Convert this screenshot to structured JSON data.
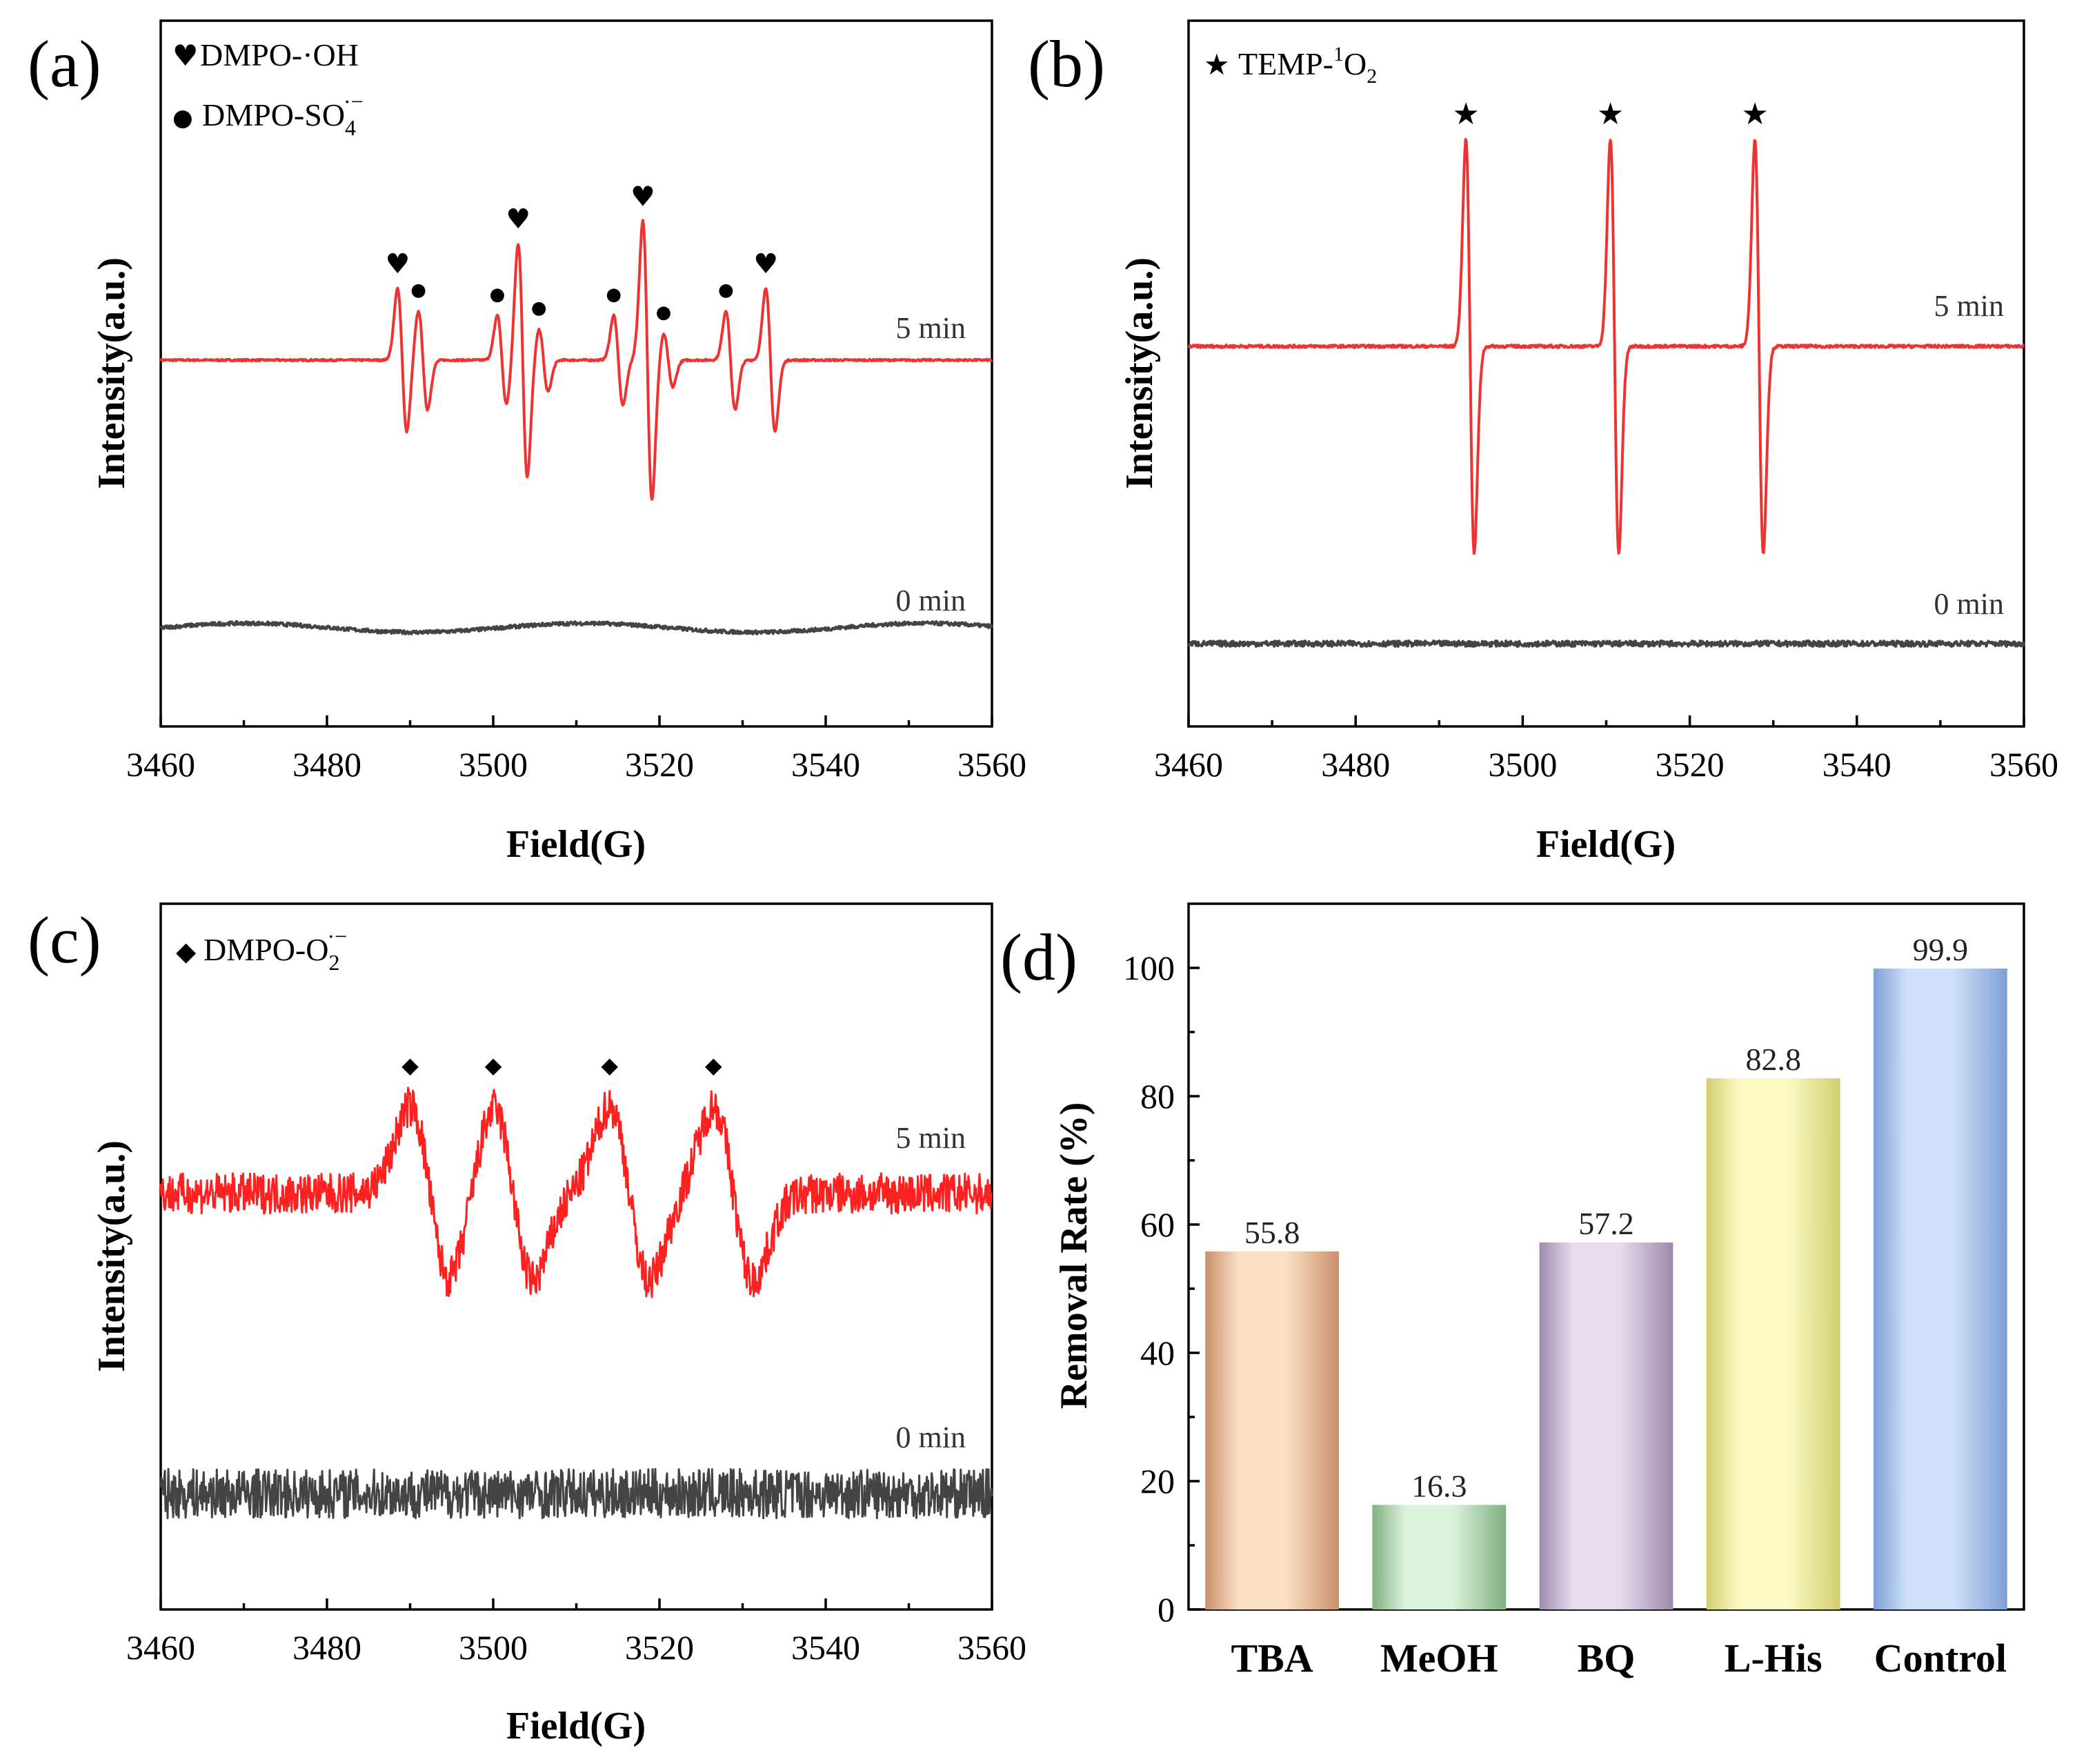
{
  "chart_data": [
    {
      "id": "a",
      "type": "line",
      "panel_label": "(a)",
      "xlabel": "Field(G)",
      "ylabel": "Intensity(a.u.)",
      "xlim": [
        3460,
        3560
      ],
      "xticks": [
        3460,
        3480,
        3500,
        3520,
        3540,
        3560
      ],
      "legend": [
        {
          "marker": "♥",
          "text": "DMPO-·OH"
        },
        {
          "marker": "●",
          "text": "DMPO-SO",
          "sub": "4",
          "sup": "·−"
        }
      ],
      "series": [
        {
          "name": "5 min",
          "color": "#ee3333",
          "peaks": [
            {
              "x": 3488.5,
              "amp": 0.8,
              "type": "OH"
            },
            {
              "x": 3491.0,
              "amp": 0.55,
              "type": "SO4"
            },
            {
              "x": 3500.5,
              "amp": 0.5,
              "type": "SO4"
            },
            {
              "x": 3503.0,
              "amp": 1.3,
              "type": "OH"
            },
            {
              "x": 3505.5,
              "amp": 0.35,
              "type": "SO4"
            },
            {
              "x": 3514.5,
              "amp": 0.5,
              "type": "SO4"
            },
            {
              "x": 3518.0,
              "amp": 1.55,
              "type": "OH"
            },
            {
              "x": 3520.5,
              "amp": 0.3,
              "type": "SO4"
            },
            {
              "x": 3528.0,
              "amp": 0.55,
              "type": "SO4"
            },
            {
              "x": 3532.8,
              "amp": 0.8,
              "type": "OH"
            }
          ]
        },
        {
          "name": "0 min",
          "color": "#444444",
          "peaks": []
        }
      ]
    },
    {
      "id": "b",
      "type": "line",
      "panel_label": "(b)",
      "xlabel": "Field(G)",
      "ylabel": "Intensity(a.u.)",
      "xlim": [
        3460,
        3560
      ],
      "xticks": [
        3460,
        3480,
        3500,
        3520,
        3540,
        3560
      ],
      "legend": [
        {
          "marker": "★",
          "text": "TEMP-",
          "sup1": "1",
          "text2": "O",
          "sub": "2"
        }
      ],
      "series": [
        {
          "name": "5 min",
          "color": "#ee3333",
          "peaks": [
            {
              "x": 3493.2,
              "amp": 1.5,
              "type": "1O2"
            },
            {
              "x": 3510.5,
              "amp": 1.5,
              "type": "1O2"
            },
            {
              "x": 3527.8,
              "amp": 1.5,
              "type": "1O2"
            }
          ]
        },
        {
          "name": "0 min",
          "color": "#444444",
          "peaks": []
        }
      ]
    },
    {
      "id": "c",
      "type": "line",
      "panel_label": "(c)",
      "xlabel": "Field(G)",
      "ylabel": "Intensity(a.u.)",
      "xlim": [
        3460,
        3560
      ],
      "xticks": [
        3460,
        3480,
        3500,
        3520,
        3540,
        3560
      ],
      "legend": [
        {
          "marker": "◆",
          "text": "DMPO-O",
          "sub": "2",
          "sup": "·−"
        }
      ],
      "series": [
        {
          "name": "5 min",
          "color": "#ff2020",
          "peaks": [
            {
              "x": 3490.0,
              "amp": 1.0,
              "type": "O2"
            },
            {
              "x": 3500.0,
              "amp": 1.0,
              "type": "O2"
            },
            {
              "x": 3514.0,
              "amp": 1.0,
              "type": "O2"
            },
            {
              "x": 3526.5,
              "amp": 1.0,
              "type": "O2"
            }
          ]
        },
        {
          "name": "0 min",
          "color": "#444444",
          "peaks": []
        }
      ]
    },
    {
      "id": "d",
      "type": "bar",
      "panel_label": "(d)",
      "xlabel": "",
      "ylabel": "Removal Rate (%)",
      "ylim": [
        0,
        110
      ],
      "yticks": [
        0,
        20,
        40,
        60,
        80,
        100
      ],
      "categories": [
        "TBA",
        "MeOH",
        "BQ",
        "L-His",
        "Control"
      ],
      "values": [
        55.8,
        16.3,
        57.2,
        82.8,
        99.9
      ],
      "value_labels": [
        "55.8",
        "16.3",
        "57.2",
        "82.8",
        "99.9"
      ],
      "colors": [
        [
          "#fbe0c6",
          "#c9906a"
        ],
        [
          "#ddf2dd",
          "#80b080"
        ],
        [
          "#e6dced",
          "#9d8aad"
        ],
        [
          "#fdfbc4",
          "#d2ce72"
        ],
        [
          "#cfe0f8",
          "#7e9fd6"
        ]
      ]
    }
  ]
}
